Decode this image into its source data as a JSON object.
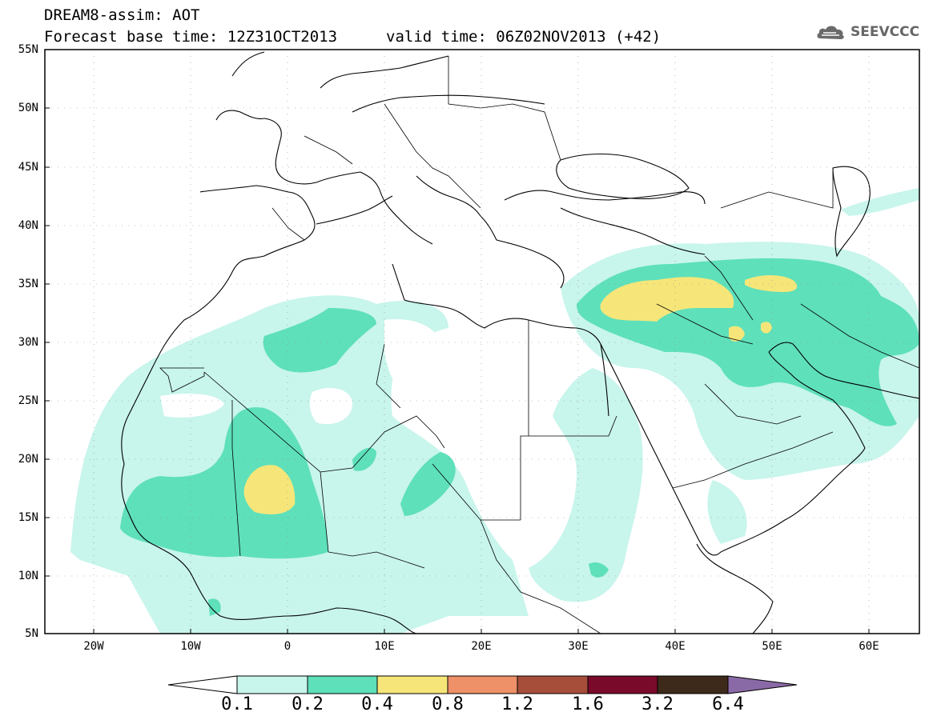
{
  "header": {
    "title_line1": "DREAM8-assim: AOT",
    "forecast_label": "Forecast base time: 12Z31OCT2013",
    "valid_label": "valid time: 06Z02NOV2013 (+42)",
    "logo_text": "SEEVCCC",
    "logo_icon": "cloud-icon"
  },
  "axes": {
    "lat_labels": [
      "55N",
      "50N",
      "45N",
      "40N",
      "35N",
      "30N",
      "25N",
      "20N",
      "15N",
      "10N",
      "5N"
    ],
    "lon_labels": [
      "20W",
      "10W",
      "0",
      "10E",
      "20E",
      "30E",
      "40E",
      "50E",
      "60E"
    ]
  },
  "colorbar": {
    "labels": [
      "0.1",
      "0.2",
      "0.4",
      "0.8",
      "1.2",
      "1.6",
      "3.2",
      "6.4"
    ],
    "colors": [
      "#ffffff",
      "#c8f5ec",
      "#5ee0bb",
      "#f6e67a",
      "#ee9068",
      "#a64e3a",
      "#7a0a2a",
      "#3e2a1a",
      "#8a6aa6"
    ]
  },
  "map_colors": {
    "level1": "#c8f5ec",
    "level2": "#5ee0bb",
    "level3": "#f6e67a"
  }
}
